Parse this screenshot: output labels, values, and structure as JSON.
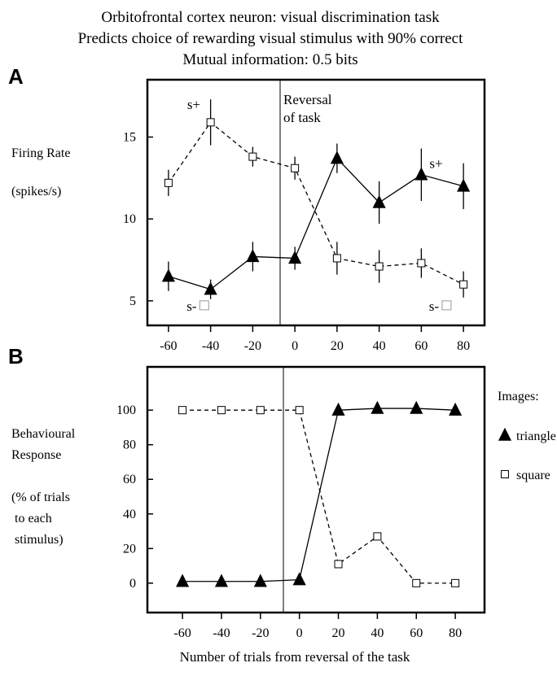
{
  "figure": {
    "title_lines": [
      "Orbitofrontal cortex neuron: visual discrimination task",
      "Predicts choice of rewarding visual stimulus with 90% correct",
      "Mutual information: 0.5 bits"
    ],
    "x_label": "Number of trials from reversal of the task"
  },
  "chart_data": [
    {
      "panel": "A",
      "type": "line",
      "ylabel_lines": [
        "Firing Rate",
        "(spikes/s)"
      ],
      "xlim": [
        -70,
        90
      ],
      "ylim": [
        3.5,
        18.5
      ],
      "yticks": [
        5,
        10,
        15
      ],
      "xticks": [
        -60,
        -40,
        -20,
        0,
        20,
        40,
        60,
        80
      ],
      "reversal_label_lines": [
        "Reversal",
        "of task"
      ],
      "grid": false,
      "series": [
        {
          "marker": "open-square",
          "line": "dashed",
          "x": [
            -60,
            -40,
            -20,
            0,
            20,
            40,
            60,
            80
          ],
          "y": [
            12.2,
            15.9,
            13.8,
            13.1,
            7.6,
            7.1,
            7.3,
            6.0
          ],
          "err": [
            0.8,
            1.4,
            0.6,
            0.7,
            1.0,
            1.0,
            0.9,
            0.8
          ]
        },
        {
          "marker": "filled-triangle",
          "line": "solid",
          "x": [
            -60,
            -40,
            -20,
            0,
            20,
            40,
            60,
            80
          ],
          "y": [
            6.5,
            5.7,
            7.7,
            7.6,
            13.7,
            11.0,
            12.7,
            12.0
          ],
          "err": [
            0.9,
            0.6,
            0.9,
            0.7,
            0.9,
            1.3,
            1.6,
            1.4
          ]
        }
      ],
      "annotations": [
        {
          "text": "s+",
          "x": -48,
          "y": 17.0
        },
        {
          "text": "s+",
          "x": 67,
          "y": 13.4
        },
        {
          "text": "s-",
          "x": -49,
          "y": 4.7
        },
        {
          "text": "s-",
          "x": 66,
          "y": 4.7
        }
      ]
    },
    {
      "panel": "B",
      "type": "line",
      "ylabel_lines": [
        "Behavioural",
        "Response",
        "",
        "(% of trials",
        " to each",
        " stimulus)"
      ],
      "xlim": [
        -78,
        95
      ],
      "ylim": [
        -17,
        125
      ],
      "yticks": [
        0,
        20,
        40,
        60,
        80,
        100
      ],
      "xticks": [
        -60,
        -40,
        -20,
        0,
        20,
        40,
        60,
        80
      ],
      "grid": false,
      "legend": {
        "title": "Images:",
        "placement": "right",
        "items": [
          {
            "label": "triangle",
            "marker": "filled-triangle"
          },
          {
            "label": "square",
            "marker": "open-square"
          }
        ]
      },
      "series": [
        {
          "name": "square",
          "marker": "open-square",
          "line": "dashed",
          "x": [
            -60,
            -40,
            -20,
            0,
            20,
            40,
            60,
            80
          ],
          "y": [
            100,
            100,
            100,
            100,
            11,
            27,
            0,
            0
          ]
        },
        {
          "name": "triangle",
          "marker": "filled-triangle",
          "line": "solid",
          "x": [
            -60,
            -40,
            -20,
            0,
            20,
            40,
            60,
            80
          ],
          "y": [
            1,
            1,
            1,
            2,
            100,
            101,
            101,
            100
          ]
        }
      ]
    }
  ],
  "panel_letters": [
    "A",
    "B"
  ],
  "colors": {
    "ink": "#000000",
    "open_marker_fill": "#ffffff",
    "s_minus_square": "#aaaaaa"
  }
}
